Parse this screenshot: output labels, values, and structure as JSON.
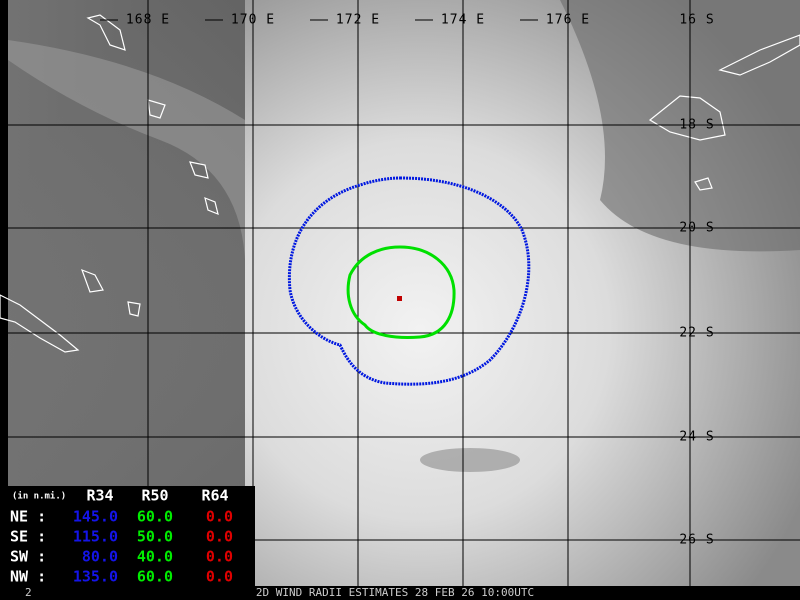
{
  "map": {
    "lon_labels": [
      "168 E",
      "170 E",
      "172 E",
      "174 E",
      "176 E"
    ],
    "lat_labels": [
      "16 S",
      "18 S",
      "20 S",
      "22 S",
      "24 S",
      "26 S"
    ]
  },
  "table": {
    "header": [
      "(in n.mi.)",
      "R34",
      "R50",
      "R64"
    ],
    "rows": [
      [
        "NE :",
        "145.0",
        "60.0",
        "0.0"
      ],
      [
        "SE :",
        "115.0",
        "50.0",
        "0.0"
      ],
      [
        "SW :",
        "80.0",
        "40.0",
        "0.0"
      ],
      [
        "NW :",
        "135.0",
        "60.0",
        "0.0"
      ]
    ]
  },
  "footer": {
    "frame": "2",
    "caption": "2D WIND RADII ESTIMATES 28 FEB 26 10:00UTC"
  }
}
